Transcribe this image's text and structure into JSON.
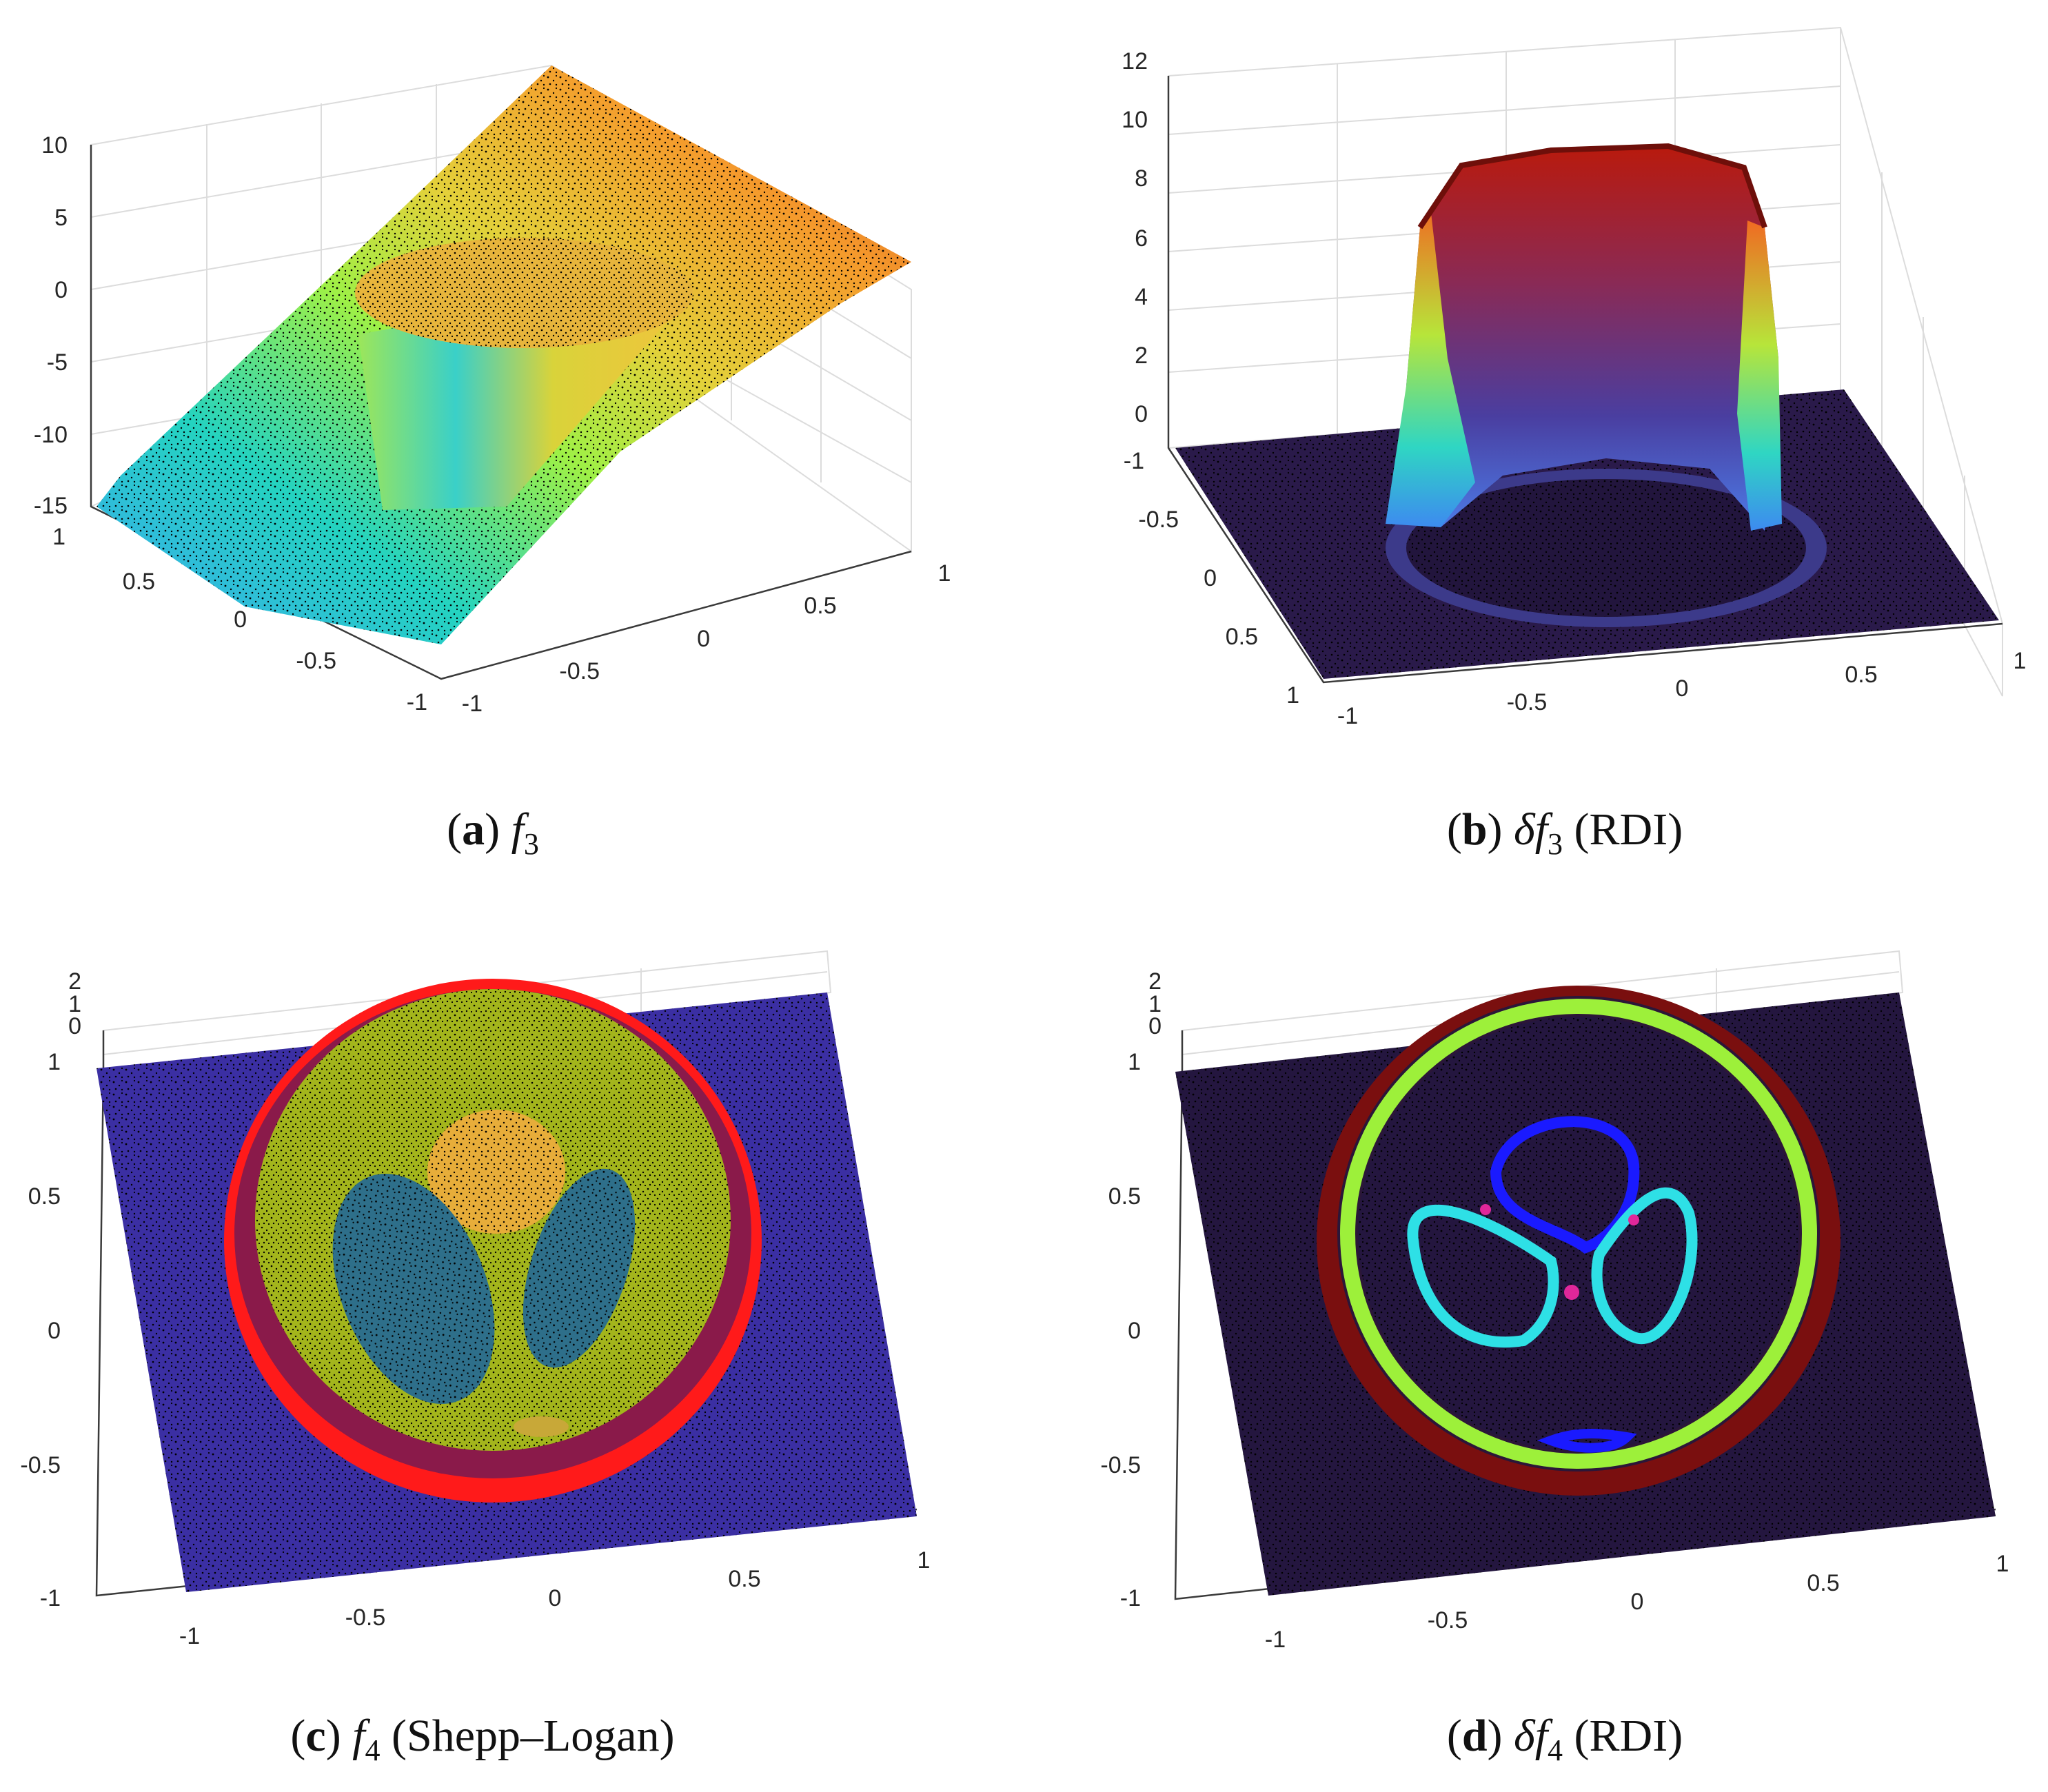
{
  "chart_data": [
    {
      "id": "a",
      "type": "surface3d",
      "caption": {
        "letter": "a",
        "func": "f",
        "sub": "3",
        "note": ""
      },
      "zticks": [
        "10",
        "5",
        "0",
        "-5",
        "-10",
        "-15"
      ],
      "yticks": [
        "1",
        "0.5",
        "0",
        "-0.5",
        "-1"
      ],
      "xticks": [
        "-1",
        "-0.5",
        "0",
        "0.5",
        "1"
      ],
      "zlim": [
        -15,
        10
      ],
      "colormap": "turbo",
      "description_values": {
        "raised_disc_top": 0,
        "ramp_min": -13,
        "ramp_max": 10
      }
    },
    {
      "id": "b",
      "type": "surface3d",
      "caption": {
        "letter": "b",
        "prefix": "δ",
        "func": "f",
        "sub": "3",
        "note": "(RDI)"
      },
      "zticks": [
        "12",
        "10",
        "8",
        "6",
        "4",
        "2",
        "0"
      ],
      "yticks": [
        "-1",
        "-0.5",
        "0",
        "0.5",
        "1"
      ],
      "xticks": [
        "-1",
        "-0.5",
        "0",
        "0.5",
        "1"
      ],
      "zlim": [
        0,
        12
      ],
      "colormap": "turbo",
      "description_values": {
        "ring_height": 9.5,
        "floor": 0
      }
    },
    {
      "id": "c",
      "type": "surface3d",
      "caption": {
        "letter": "c",
        "func": "f",
        "sub": "4",
        "note": "(Shepp–Logan)"
      },
      "zticks": [
        "2",
        "1",
        "0"
      ],
      "yticks": [
        "1",
        "0.5",
        "0",
        "-0.5",
        "-1"
      ],
      "xticks": [
        "-1",
        "-0.5",
        "0",
        "0.5",
        "1"
      ],
      "zlim": [
        0,
        2
      ],
      "colormap": "turbo"
    },
    {
      "id": "d",
      "type": "surface3d",
      "caption": {
        "letter": "d",
        "prefix": "δ",
        "func": "f",
        "sub": "4",
        "note": "(RDI)"
      },
      "zticks": [
        "2",
        "1",
        "0"
      ],
      "yticks": [
        "1",
        "0.5",
        "0",
        "-0.5",
        "-1"
      ],
      "xticks": [
        "-1",
        "-0.5",
        "0",
        "0.5",
        "1"
      ],
      "zlim": [
        0,
        2
      ],
      "colormap": "turbo"
    }
  ],
  "colors": {
    "dots": "#000000",
    "deep_blue": "#3b2fa3",
    "dark_navy": "#24163f",
    "red": "#ff1a1a",
    "olive": "#a6b81e",
    "teal": "#2e6f8a",
    "amber": "#e6a73c",
    "dark_red": "#7a0f0f",
    "lime": "#9df03a",
    "cyan": "#2ee0e6",
    "blue": "#1a1aff",
    "magenta": "#e0279a"
  }
}
